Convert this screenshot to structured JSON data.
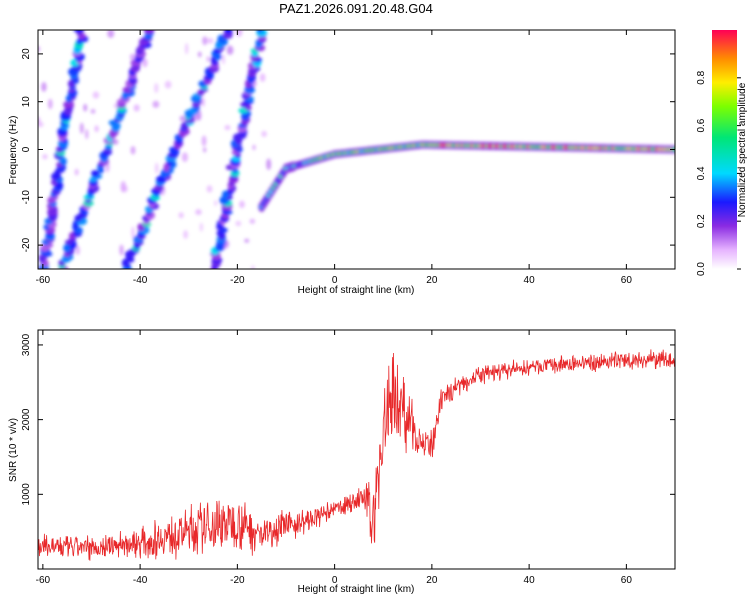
{
  "title": "PAZ1.2026.091.20.48.G04",
  "chart_data": [
    {
      "type": "heatmap",
      "xlabel": "Height of straight line (km)",
      "ylabel": "Frequency (Hz)",
      "xlim": [
        -61,
        70
      ],
      "ylim": [
        -25,
        25
      ],
      "xticks": [
        -60,
        -40,
        -20,
        0,
        20,
        40,
        60
      ],
      "yticks": [
        -20,
        -10,
        0,
        10,
        20
      ],
      "colorbar": {
        "label": "Normalized spectral amplitude",
        "range": [
          0,
          1
        ],
        "ticks": [
          0.0,
          0.2,
          0.4,
          0.6,
          0.8
        ]
      },
      "features": [
        {
          "name": "stripe-1",
          "x": [
            -60,
            -52
          ],
          "y": [
            -25,
            25
          ]
        },
        {
          "name": "stripe-2",
          "x": [
            -56,
            -38
          ],
          "y": [
            -25,
            25
          ]
        },
        {
          "name": "stripe-3",
          "x": [
            -43,
            -22
          ],
          "y": [
            -25,
            25
          ]
        },
        {
          "name": "stripe-4",
          "x": [
            -25,
            -15
          ],
          "y": [
            -25,
            25
          ]
        },
        {
          "name": "main-ridge",
          "x": [
            -15,
            -10,
            0,
            18,
            70
          ],
          "y": [
            -12,
            -4,
            -1,
            1,
            0
          ]
        }
      ]
    },
    {
      "type": "line",
      "xlabel": "Height of straight line (km)",
      "ylabel": "SNR (10 * v/v)",
      "xlim": [
        -61,
        70
      ],
      "ylim": [
        0,
        3200
      ],
      "xticks": [
        -60,
        -40,
        -20,
        0,
        20,
        40,
        60
      ],
      "yticks": [
        1000,
        2000,
        3000
      ],
      "color": "#e8282a",
      "trend": {
        "x": [
          -61,
          -50,
          -40,
          -30,
          -20,
          -15,
          -12,
          -5,
          0,
          6,
          8,
          10,
          12,
          15,
          18,
          20,
          22,
          25,
          30,
          40,
          50,
          60,
          70
        ],
        "y": [
          300,
          280,
          350,
          500,
          650,
          450,
          550,
          650,
          800,
          950,
          700,
          1800,
          2400,
          2000,
          1700,
          1600,
          2250,
          2450,
          2600,
          2700,
          2750,
          2800,
          2800
        ],
        "spread": [
          150,
          150,
          180,
          300,
          350,
          250,
          200,
          150,
          100,
          150,
          500,
          600,
          600,
          400,
          250,
          200,
          150,
          120,
          120,
          100,
          100,
          120,
          120
        ]
      }
    }
  ]
}
